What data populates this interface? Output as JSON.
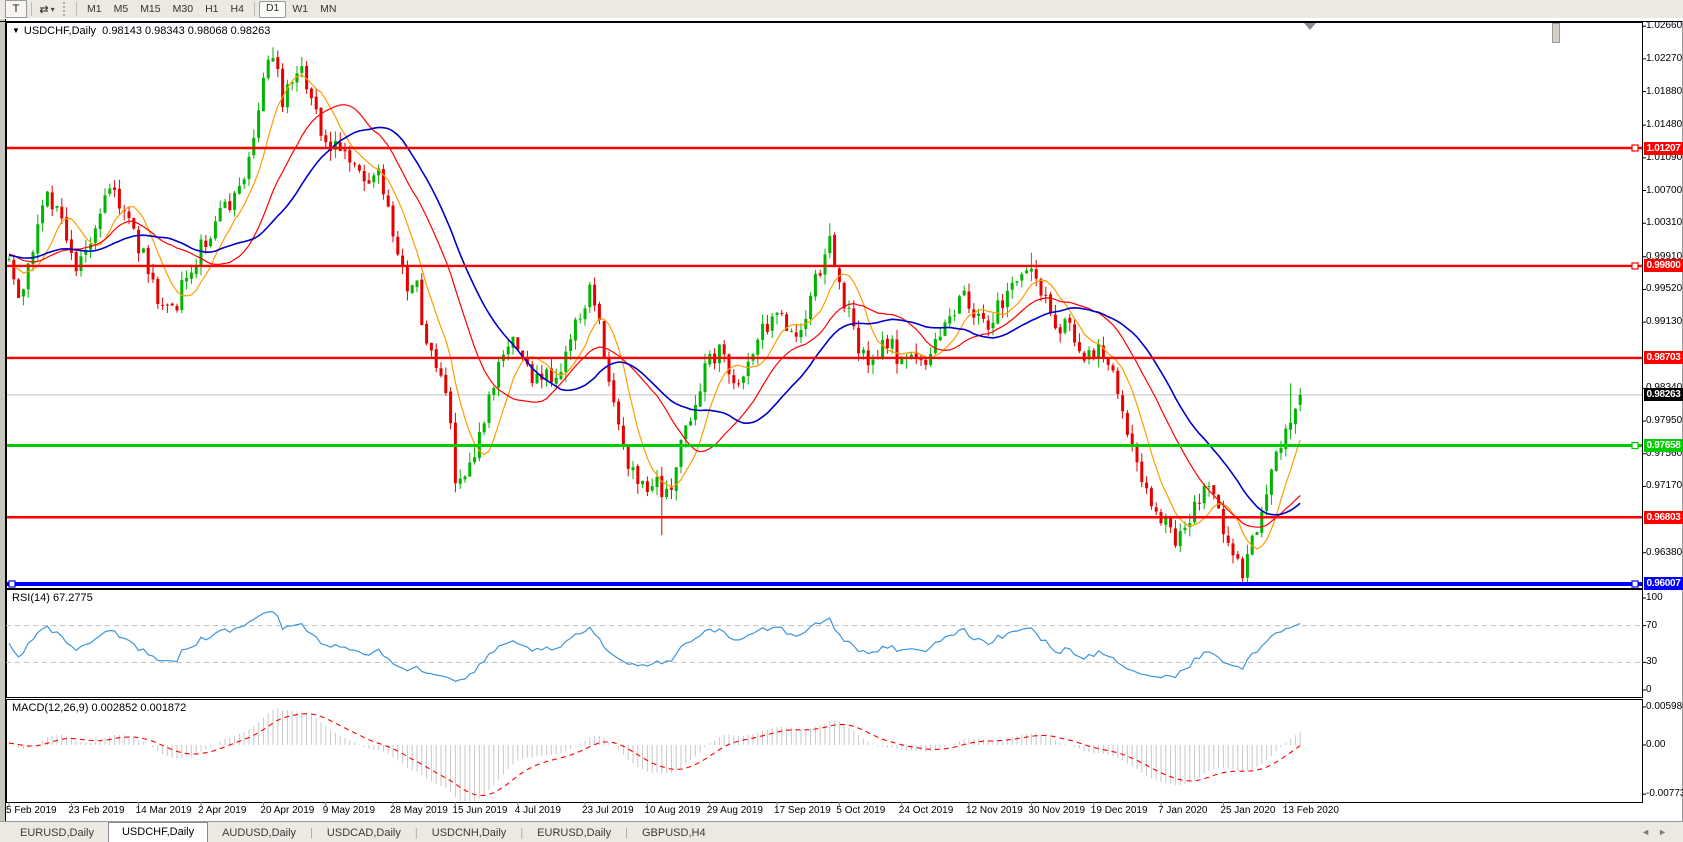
{
  "toolbar": {
    "text_tool_label": "T",
    "arrows_tool_icon": "⇄",
    "dropdown_caret": "▾",
    "timeframes": [
      "M1",
      "M5",
      "M15",
      "M30",
      "H1",
      "H4",
      "D1",
      "W1",
      "MN"
    ],
    "active_timeframe": "D1"
  },
  "chart": {
    "title_marker": "▼",
    "symbol_period": "USDCHF,Daily",
    "ohlc_text": "0.98143 0.98343 0.98068 0.98263"
  },
  "price_axis": {
    "ticks": [
      "1.02660",
      "1.02270",
      "1.01880",
      "1.01480",
      "1.01090",
      "1.00700",
      "1.00310",
      "0.99910",
      "0.99520",
      "0.99130",
      "0.98340",
      "0.97950",
      "0.97560",
      "0.97170",
      "0.96380"
    ]
  },
  "hlines": [
    {
      "value": "1.01207",
      "price": 1.01207,
      "color": "#ff0000",
      "width": 2.4,
      "handles": [
        "right"
      ]
    },
    {
      "value": "0.99800",
      "price": 0.998,
      "color": "#ff0000",
      "width": 2.4,
      "handles": [
        "right"
      ]
    },
    {
      "value": "0.98703",
      "price": 0.98703,
      "color": "#ff0000",
      "width": 2.4,
      "handles": []
    },
    {
      "value": "0.97658",
      "price": 0.97658,
      "color": "#00cc00",
      "width": 3,
      "handles": [
        "right"
      ]
    },
    {
      "value": "0.96803",
      "price": 0.96803,
      "color": "#ff0000",
      "width": 2.4,
      "handles": []
    },
    {
      "value": "0.96007",
      "price": 0.96007,
      "color": "#0000ff",
      "width": 4,
      "handles": [
        "left",
        "right"
      ]
    }
  ],
  "current_price": {
    "value": "0.98263",
    "price": 0.98263,
    "line_color": "#c0c0c0",
    "label_bg": "#000000"
  },
  "rsi_panel": {
    "label": "RSI(14) 67.2775",
    "ticks": [
      {
        "v": 100,
        "text": "100"
      },
      {
        "v": 70,
        "text": "70"
      },
      {
        "v": 30,
        "text": "30"
      },
      {
        "v": 0,
        "text": "0"
      }
    ]
  },
  "macd_panel": {
    "label": "MACD(12,26,9) 0.002852 0.001872",
    "ticks": [
      {
        "v": 0.005986,
        "text": "0.005986"
      },
      {
        "v": 0,
        "text": "0.00"
      },
      {
        "v": -0.007737,
        "text": "-0.007737"
      }
    ]
  },
  "tabs": {
    "items": [
      "EURUSD,Daily",
      "USDCHF,Daily",
      "AUDUSD,Daily",
      "USDCAD,Daily",
      "USDCNH,Daily",
      "EURUSD,Daily",
      "GBPUSD,H4"
    ],
    "active_index": 1,
    "scroll_left_icon": "◄",
    "scroll_right_icon": "►"
  },
  "chart_data": {
    "type": "candlestick",
    "symbol": "USDCHF",
    "timeframe": "Daily",
    "visible_bars": 270,
    "last_bar": {
      "open": 0.98143,
      "high": 0.98343,
      "low": 0.98068,
      "close": 0.98263
    },
    "main_ylim": [
      0.95959,
      1.0271
    ],
    "bull_color": "#00b400",
    "bear_color": "#e60000",
    "moving_averages": [
      {
        "name": "fast-ma",
        "period": 8,
        "color": "#ff9c00"
      },
      {
        "name": "medium-ma",
        "period": 20,
        "color": "#ff0000"
      },
      {
        "name": "slow-ma",
        "period": 30,
        "color": "#0000c8"
      }
    ],
    "rsi": {
      "period": 14,
      "current": 67.2775,
      "ylim": [
        0,
        100
      ],
      "levels": [
        70,
        30
      ],
      "line_color": "#3d96dc",
      "level_color": "#c0c0c0"
    },
    "macd": {
      "fast": 12,
      "slow": 26,
      "signal": 9,
      "current_macd": 0.002852,
      "current_signal": 0.001872,
      "ylim": [
        -0.007737,
        0.005986
      ],
      "hist_color": "#c8c8c8",
      "signal_color": "#ff0000"
    },
    "price_anchors": [
      [
        -60,
        0.9952
      ],
      [
        -45,
        0.9912
      ],
      [
        -30,
        0.9984
      ],
      [
        -15,
        1.0008
      ],
      [
        -5,
        0.9976
      ],
      [
        0,
        0.999
      ],
      [
        2,
        0.9938
      ],
      [
        5,
        1.0008
      ],
      [
        8,
        1.0068
      ],
      [
        11,
        1.0041
      ],
      [
        14,
        0.9972
      ],
      [
        17,
        1.0011
      ],
      [
        21,
        1.0078
      ],
      [
        24,
        1.0046
      ],
      [
        28,
        0.9992
      ],
      [
        31,
        0.9945
      ],
      [
        34,
        0.9928
      ],
      [
        37,
        0.9962
      ],
      [
        40,
        1.0002
      ],
      [
        44,
        1.0038
      ],
      [
        47,
        1.0058
      ],
      [
        50,
        1.011
      ],
      [
        53,
        1.0205
      ],
      [
        55,
        1.0228
      ],
      [
        57,
        1.0181
      ],
      [
        59,
        1.0212
      ],
      [
        61,
        1.0224
      ],
      [
        63,
        1.0181
      ],
      [
        65,
        1.0148
      ],
      [
        67,
        1.0108
      ],
      [
        69,
        1.0126
      ],
      [
        71,
        1.0108
      ],
      [
        74,
        1.0078
      ],
      [
        77,
        1.0086
      ],
      [
        79,
        1.0038
      ],
      [
        81,
        0.9985
      ],
      [
        83,
        0.9948
      ],
      [
        85,
        0.9952
      ],
      [
        87,
        0.989
      ],
      [
        89,
        0.9856
      ],
      [
        91,
        0.9838
      ],
      [
        93,
        0.9725
      ],
      [
        95,
        0.9718
      ],
      [
        97,
        0.9748
      ],
      [
        99,
        0.9792
      ],
      [
        101,
        0.9838
      ],
      [
        103,
        0.9872
      ],
      [
        105,
        0.9898
      ],
      [
        107,
        0.9868
      ],
      [
        109,
        0.9846
      ],
      [
        111,
        0.9852
      ],
      [
        113,
        0.9838
      ],
      [
        115,
        0.9862
      ],
      [
        117,
        0.9892
      ],
      [
        119,
        0.992
      ],
      [
        121,
        0.9948
      ],
      [
        123,
        0.9918
      ],
      [
        125,
        0.9846
      ],
      [
        127,
        0.9795
      ],
      [
        129,
        0.9748
      ],
      [
        131,
        0.9728
      ],
      [
        133,
        0.9722
      ],
      [
        135,
        0.9738
      ],
      [
        136,
        0.9692
      ],
      [
        138,
        0.9726
      ],
      [
        140,
        0.9768
      ],
      [
        142,
        0.9802
      ],
      [
        144,
        0.9838
      ],
      [
        146,
        0.9868
      ],
      [
        148,
        0.9882
      ],
      [
        150,
        0.9858
      ],
      [
        152,
        0.9838
      ],
      [
        154,
        0.9862
      ],
      [
        156,
        0.9888
      ],
      [
        158,
        0.9912
      ],
      [
        160,
        0.9928
      ],
      [
        162,
        0.9906
      ],
      [
        164,
        0.9888
      ],
      [
        166,
        0.9922
      ],
      [
        168,
        0.9958
      ],
      [
        171,
        1.0006
      ],
      [
        173,
        0.9958
      ],
      [
        175,
        0.9918
      ],
      [
        177,
        0.9882
      ],
      [
        179,
        0.9858
      ],
      [
        181,
        0.9872
      ],
      [
        183,
        0.9892
      ],
      [
        185,
        0.9875
      ],
      [
        187,
        0.9862
      ],
      [
        189,
        0.9878
      ],
      [
        191,
        0.9863
      ],
      [
        193,
        0.9888
      ],
      [
        195,
        0.9912
      ],
      [
        197,
        0.9928
      ],
      [
        199,
        0.9942
      ],
      [
        201,
        0.9928
      ],
      [
        203,
        0.9906
      ],
      [
        205,
        0.9918
      ],
      [
        207,
        0.9935
      ],
      [
        209,
        0.9952
      ],
      [
        211,
        0.9978
      ],
      [
        213,
        0.9986
      ],
      [
        215,
        0.9952
      ],
      [
        217,
        0.9918
      ],
      [
        219,
        0.9898
      ],
      [
        221,
        0.9912
      ],
      [
        223,
        0.9888
      ],
      [
        225,
        0.9868
      ],
      [
        227,
        0.9882
      ],
      [
        229,
        0.9858
      ],
      [
        231,
        0.9828
      ],
      [
        233,
        0.9788
      ],
      [
        235,
        0.9748
      ],
      [
        237,
        0.9712
      ],
      [
        239,
        0.9688
      ],
      [
        241,
        0.9672
      ],
      [
        243,
        0.9656
      ],
      [
        245,
        0.9668
      ],
      [
        247,
        0.9692
      ],
      [
        249,
        0.9718
      ],
      [
        251,
        0.9698
      ],
      [
        253,
        0.9662
      ],
      [
        255,
        0.9632
      ],
      [
        257,
        0.9618
      ],
      [
        259,
        0.9652
      ],
      [
        261,
        0.9698
      ],
      [
        263,
        0.9738
      ],
      [
        265,
        0.9775
      ],
      [
        267,
        0.9803
      ],
      [
        268,
        0.9812
      ],
      [
        269,
        0.98263
      ]
    ],
    "wick_overrides": [
      [
        55,
        "high",
        1.0241
      ],
      [
        121,
        "high",
        0.9961
      ],
      [
        136,
        "low",
        0.9659
      ],
      [
        171,
        "high",
        1.0031
      ],
      [
        213,
        "high",
        0.9996
      ],
      [
        257,
        "low",
        0.9604
      ],
      [
        267,
        "high",
        0.984
      ]
    ],
    "date_ticks": [
      {
        "bar": 0,
        "label": "5 Feb 2019"
      },
      {
        "bar": 13,
        "label": "23 Feb 2019"
      },
      {
        "bar": 27,
        "label": "14 Mar 2019"
      },
      {
        "bar": 40,
        "label": "2 Apr 2019"
      },
      {
        "bar": 53,
        "label": "20 Apr 2019"
      },
      {
        "bar": 66,
        "label": "9 May 2019"
      },
      {
        "bar": 80,
        "label": "28 May 2019"
      },
      {
        "bar": 93,
        "label": "15 Jun 2019"
      },
      {
        "bar": 106,
        "label": "4 Jul 2019"
      },
      {
        "bar": 120,
        "label": "23 Jul 2019"
      },
      {
        "bar": 133,
        "label": "10 Aug 2019"
      },
      {
        "bar": 146,
        "label": "29 Aug 2019"
      },
      {
        "bar": 160,
        "label": "17 Sep 2019"
      },
      {
        "bar": 173,
        "label": "5 Oct 2019"
      },
      {
        "bar": 186,
        "label": "24 Oct 2019"
      },
      {
        "bar": 200,
        "label": "12 Nov 2019"
      },
      {
        "bar": 213,
        "label": "30 Nov 2019"
      },
      {
        "bar": 226,
        "label": "19 Dec 2019"
      },
      {
        "bar": 240,
        "label": "7 Jan 2020"
      },
      {
        "bar": 253,
        "label": "25 Jan 2020"
      },
      {
        "bar": 266,
        "label": "13 Feb 2020"
      }
    ]
  }
}
